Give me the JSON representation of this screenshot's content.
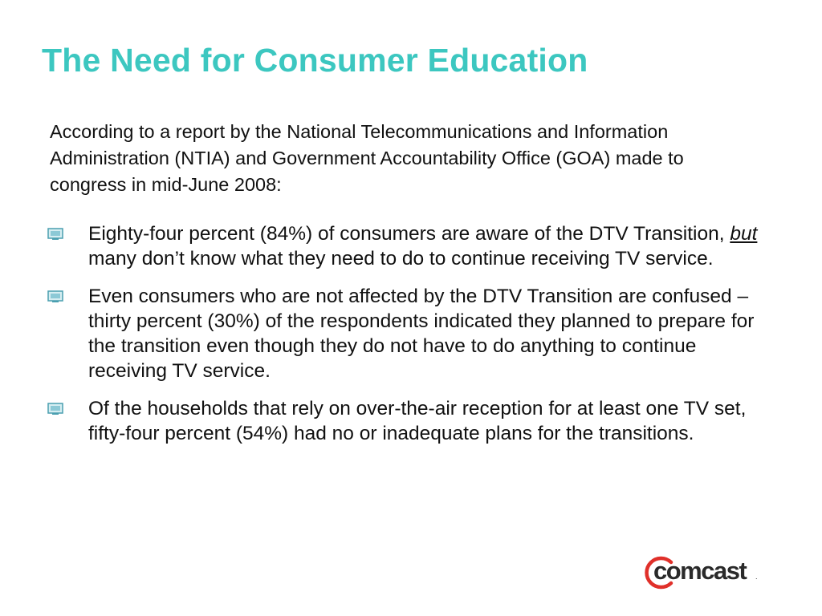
{
  "slide": {
    "title": "The Need for Consumer Education",
    "intro": "According to a report by the National Telecommunications and Information Administration (NTIA) and Government Accountability Office (GOA) made to congress in mid-June 2008:",
    "bullets": [
      {
        "before": "Eighty-four percent (84%) of consumers are aware of the DTV Transition, ",
        "emphasis": "but",
        "after": " many don’t know what they need to do to continue receiving TV service."
      },
      {
        "text": "Even consumers who are not affected by the DTV Transition are confused – thirty percent (30%) of the respondents indicated they planned to prepare for the transition even though they do not have to do anything to continue receiving TV service."
      },
      {
        "text": "Of the households that rely on over-the-air reception for at least one TV set, fifty-four percent (54%) had no or inadequate plans for the transitions."
      }
    ],
    "bullet_icon": "tv-screen-icon"
  },
  "logo": {
    "text": "comcast",
    "registered_mark": ".",
    "ring_color": "#e0302a",
    "text_color": "#2a2a2a"
  },
  "colors": {
    "title": "#3cc7c0",
    "body_text": "#111111",
    "bullet_icon": "#4a9fb0"
  }
}
